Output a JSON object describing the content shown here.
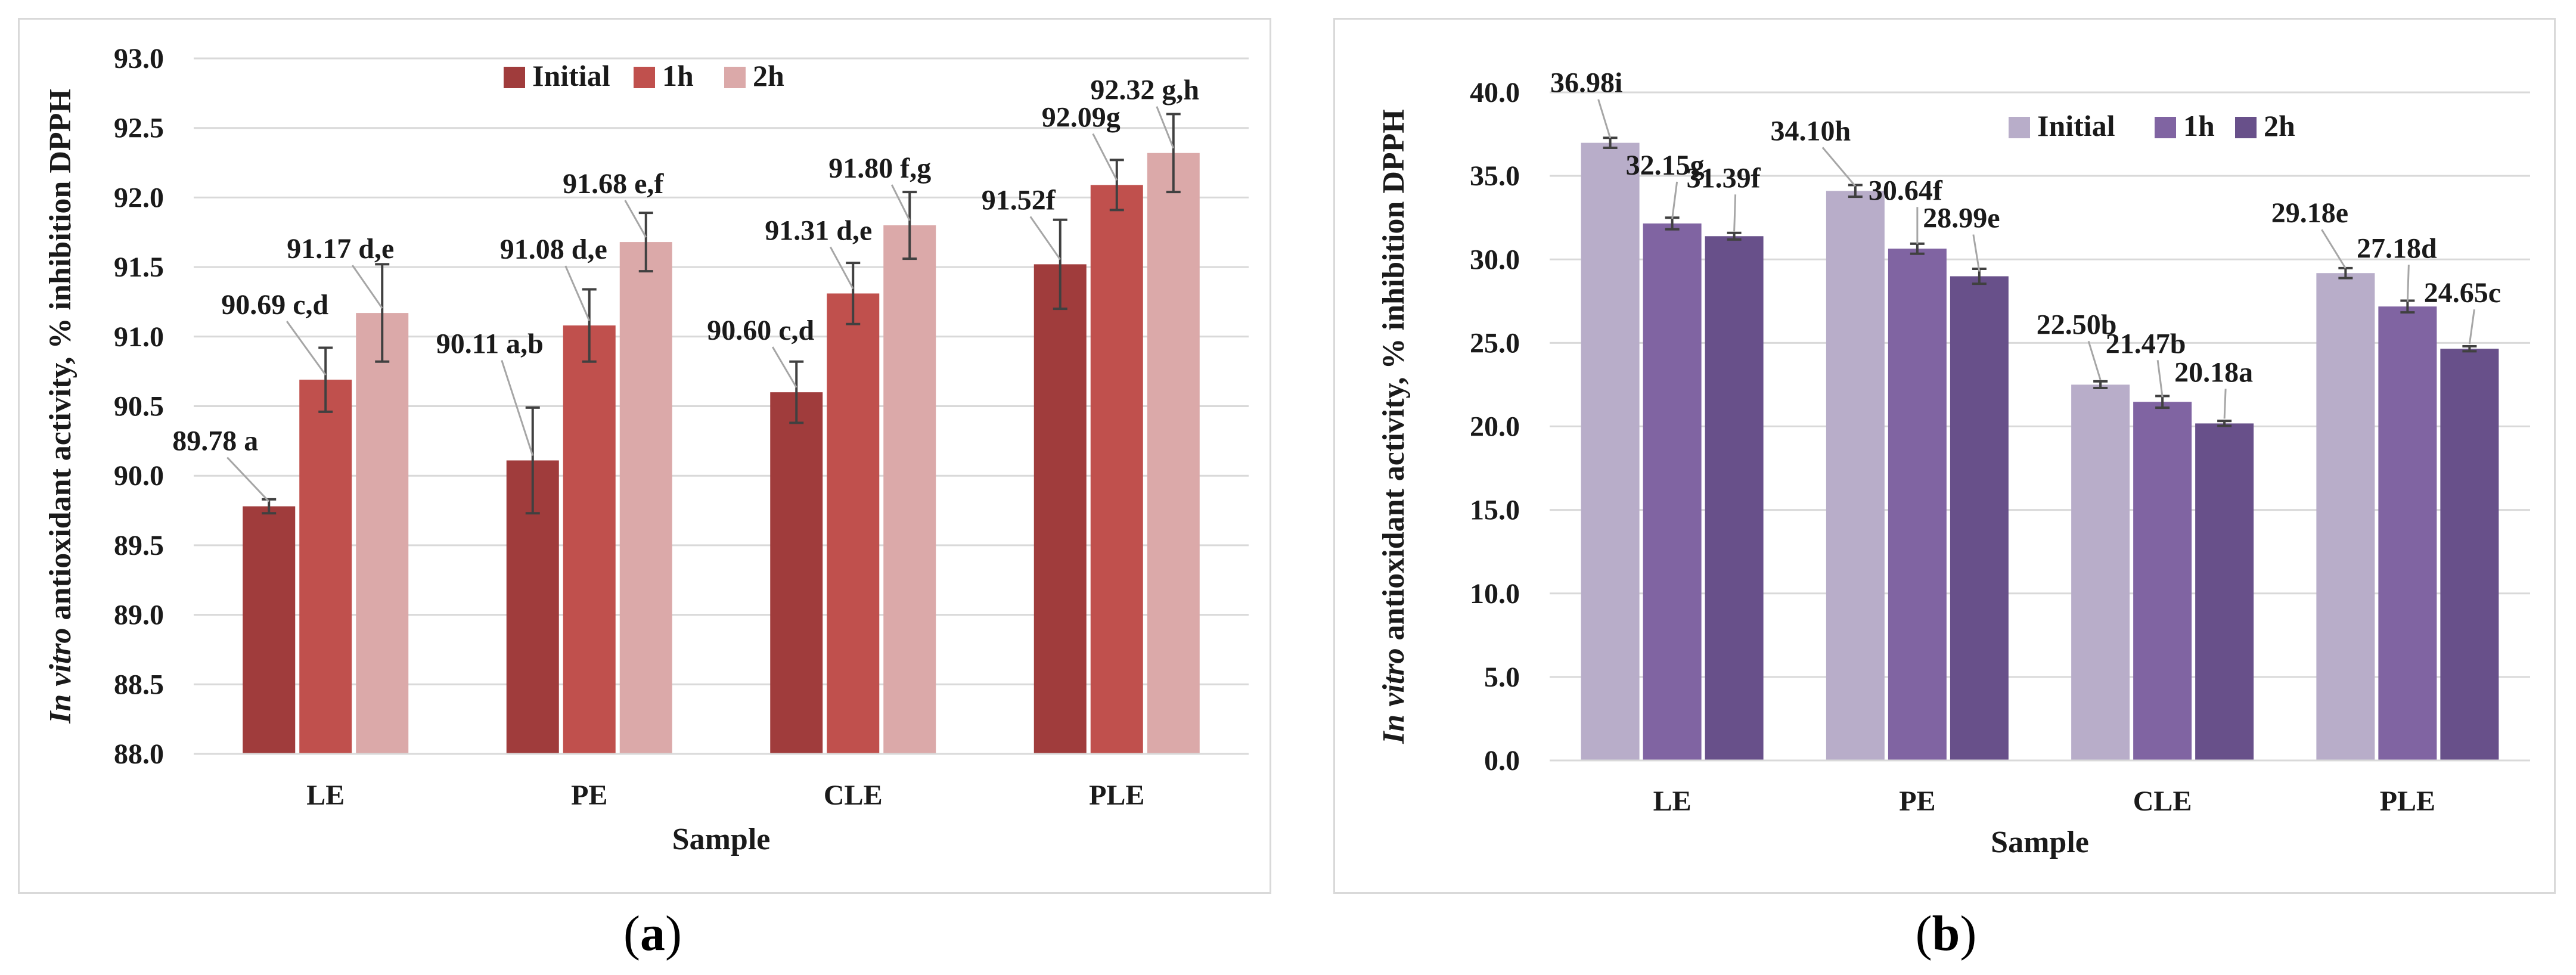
{
  "chart_data": [
    {
      "panel": "a",
      "type": "bar",
      "title": "",
      "xlabel": "Sample",
      "ylabel_italic": "In vitro",
      "ylabel_rest": "antioxidant activity, % inhibition DPPH",
      "ylim": [
        88.0,
        93.0
      ],
      "ytick_step": 0.5,
      "yticks": [
        "88.0",
        "88.5",
        "89.0",
        "89.5",
        "90.0",
        "90.5",
        "91.0",
        "91.5",
        "92.0",
        "92.5",
        "93.0"
      ],
      "grid": true,
      "legend_position": "top-center",
      "categories": [
        "LE",
        "PE",
        "CLE",
        "PLE"
      ],
      "series": [
        {
          "name": "Initial",
          "color": "#a03c3c",
          "values": [
            89.78,
            90.11,
            90.6,
            91.52
          ],
          "errors": [
            0.05,
            0.38,
            0.22,
            0.32
          ],
          "labels": [
            "89.78 a",
            "90.11 a,b",
            "90.60 c,d",
            "91.52f"
          ]
        },
        {
          "name": "1h",
          "color": "#c0504d",
          "values": [
            90.69,
            91.08,
            91.31,
            92.09
          ],
          "errors": [
            0.23,
            0.26,
            0.22,
            0.18
          ],
          "labels": [
            "90.69 c,d",
            "91.08 d,e",
            "91.31 d,e",
            "92.09g"
          ]
        },
        {
          "name": "2h",
          "color": "#dba9a9",
          "values": [
            91.17,
            91.68,
            91.8,
            92.32
          ],
          "errors": [
            0.35,
            0.21,
            0.24,
            0.28
          ],
          "labels": [
            "91.17 d,e",
            "91.68 e,f",
            "91.80 f,g",
            "92.32 g,h"
          ]
        }
      ]
    },
    {
      "panel": "b",
      "type": "bar",
      "title": "",
      "xlabel": "Sample",
      "ylabel_italic": "In vitro",
      "ylabel_rest": "antioxidant activity, % inhibition DPPH",
      "ylim": [
        0.0,
        40.0
      ],
      "ytick_step": 5.0,
      "yticks": [
        "0.0",
        "5.0",
        "10.0",
        "15.0",
        "20.0",
        "25.0",
        "30.0",
        "35.0",
        "40.0"
      ],
      "grid": true,
      "legend_position": "top-right",
      "categories": [
        "LE",
        "PE",
        "CLE",
        "PLE"
      ],
      "series": [
        {
          "name": "Initial",
          "color": "#b8adc9",
          "values": [
            36.98,
            34.1,
            22.5,
            29.18
          ],
          "errors": [
            0.3,
            0.35,
            0.2,
            0.3
          ],
          "labels": [
            "36.98i",
            "34.10h",
            "22.50b",
            "29.18e"
          ]
        },
        {
          "name": "1h",
          "color": "#8064a2",
          "values": [
            32.15,
            30.64,
            21.47,
            27.18
          ],
          "errors": [
            0.35,
            0.3,
            0.35,
            0.35
          ],
          "labels": [
            "32.15g",
            "30.64f",
            "21.47b",
            "27.18d"
          ]
        },
        {
          "name": "2h",
          "color": "#68508a",
          "values": [
            31.39,
            28.99,
            20.18,
            24.65
          ],
          "errors": [
            0.2,
            0.45,
            0.15,
            0.15
          ],
          "labels": [
            "31.39f",
            "28.99e",
            "20.18a",
            "24.65c"
          ]
        }
      ]
    }
  ],
  "panel_labels": {
    "a": "a",
    "b": "b"
  }
}
